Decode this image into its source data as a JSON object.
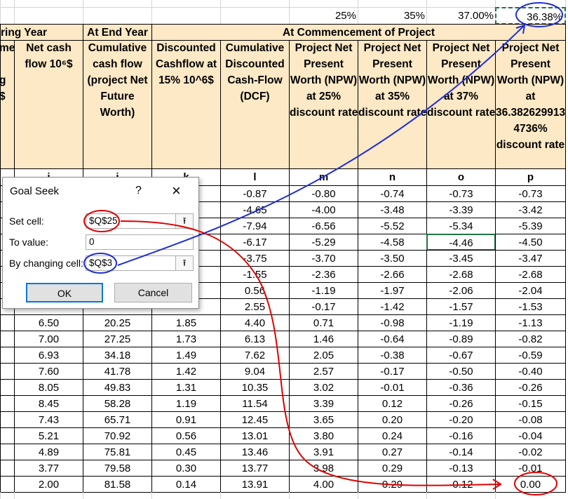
{
  "top_row": [
    "25%",
    "35%",
    "37.00%",
    "36.38%"
  ],
  "group_headers": [
    "ring Year",
    "At End Year",
    "At Commencement of Project"
  ],
  "column_headers": [
    [
      "me",
      "g",
      "$"
    ],
    [
      "Net cash",
      "flow 10⁶$"
    ],
    [
      "Cumulative",
      "cash flow",
      "(project Net",
      "Future",
      "Worth)"
    ],
    [
      "Discounted",
      "Cashflow at",
      "15% 10^6$"
    ],
    [
      "Cumulative",
      "Discounted",
      "Cash-Flow",
      "(DCF)"
    ],
    [
      "Project Net",
      "Present",
      "Worth (NPW)",
      "at 25%",
      "discount rate"
    ],
    [
      "Project Net",
      "Present",
      "Worth (NPW)",
      "at 35%",
      "discount rate"
    ],
    [
      "Project Net",
      "Present",
      "Worth (NPW)",
      "at 37%",
      "discount rate"
    ],
    [
      "Project Net",
      "Present",
      "Worth (NPW)",
      "at",
      "36.382629913",
      "4736%",
      "discount rate"
    ]
  ],
  "column_letters": [
    "i",
    "j",
    "k",
    "l",
    "m",
    "n",
    "o",
    "p"
  ],
  "rows": [
    [
      "-0.87",
      "-0.80",
      "-0.74",
      "-0.73",
      "-0.73"
    ],
    [
      "-4.65",
      "-4.00",
      "-3.48",
      "-3.39",
      "-3.42"
    ],
    [
      "-7.94",
      "-6.56",
      "-5.52",
      "-5.34",
      "-5.39"
    ],
    [
      "-6.17",
      "-5.29",
      "-4.58",
      "-4.46",
      "-4.50"
    ],
    [
      "-3.75",
      "-3.70",
      "-3.50",
      "-3.45",
      "-3.47"
    ],
    [
      "-1.55",
      "-2.36",
      "-2.66",
      "-2.68",
      "-2.68"
    ],
    [
      "0.56",
      "-1.19",
      "-1.97",
      "-2.06",
      "-2.04"
    ],
    [
      "2.55",
      "-0.17",
      "-1.42",
      "-1.57",
      "-1.53"
    ],
    [
      "6.50",
      "20.25",
      "1.85",
      "4.40",
      "0.71",
      "-0.98",
      "-1.19",
      "-1.13"
    ],
    [
      "7.00",
      "27.25",
      "1.73",
      "6.13",
      "1.46",
      "-0.64",
      "-0.89",
      "-0.82"
    ],
    [
      "6.93",
      "34.18",
      "1.49",
      "7.62",
      "2.05",
      "-0.38",
      "-0.67",
      "-0.59"
    ],
    [
      "7.60",
      "41.78",
      "1.42",
      "9.04",
      "2.57",
      "-0.17",
      "-0.50",
      "-0.40"
    ],
    [
      "8.05",
      "49.83",
      "1.31",
      "10.35",
      "3.02",
      "-0.01",
      "-0.36",
      "-0.26"
    ],
    [
      "8.45",
      "58.28",
      "1.19",
      "11.54",
      "3.39",
      "0.12",
      "-0.26",
      "-0.15"
    ],
    [
      "7.43",
      "65.71",
      "0.91",
      "12.45",
      "3.65",
      "0.20",
      "-0.20",
      "-0.08"
    ],
    [
      "5.21",
      "70.92",
      "0.56",
      "13.01",
      "3.80",
      "0.24",
      "-0.16",
      "-0.04"
    ],
    [
      "4.89",
      "75.81",
      "0.45",
      "13.46",
      "3.91",
      "0.27",
      "-0.14",
      "-0.02"
    ],
    [
      "3.77",
      "79.58",
      "0.30",
      "13.77",
      "3.98",
      "0.29",
      "-0.13",
      "-0.01"
    ],
    [
      "2.00",
      "81.58",
      "0.14",
      "13.91",
      "4.00",
      "0.29",
      "-0.12",
      "0.00"
    ]
  ],
  "dialog": {
    "title": "Goal Seek",
    "help": "?",
    "close": "×",
    "fields": [
      {
        "label": "Set cell:",
        "value": "$Q$25"
      },
      {
        "label": "To value:",
        "value": "0"
      },
      {
        "label": "By changing cell:",
        "value": "$Q$3"
      }
    ],
    "buttons": [
      "OK",
      "Cancel"
    ]
  }
}
